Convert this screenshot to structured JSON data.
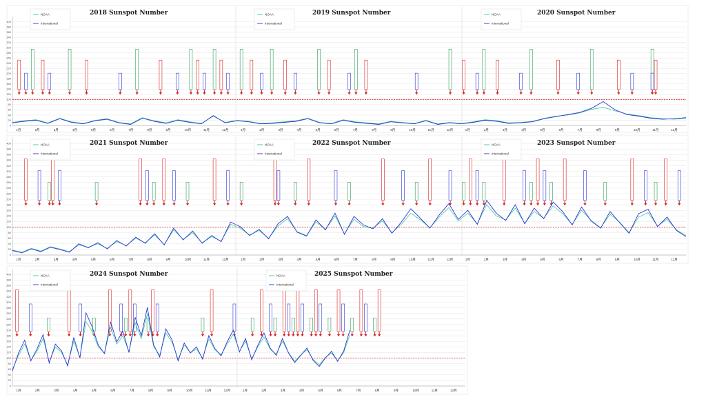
{
  "colors": {
    "noaa": "#3ec99a",
    "international": "#2a35d6",
    "threshold": "#e03030",
    "grid": "#d9d9d9",
    "event_red": "#d81f1f",
    "event_blue": "#2a35d6",
    "event_green": "#2f9a57"
  },
  "legend": {
    "noaa": "NOAA",
    "international": "International"
  },
  "month_labels": [
    "1月",
    "2月",
    "3月",
    "4月",
    "5月",
    "6月",
    "7月",
    "8月",
    "9月",
    "10月",
    "11月",
    "12月"
  ],
  "chart_data": [
    {
      "type": "line",
      "title_left": "2018 Sunspot Number",
      "title_mid": "2019 Sunspot Number",
      "title_right": "2020 Sunspot Number",
      "years": [
        2018,
        2019,
        2020
      ],
      "ylim": [
        0,
        420
      ],
      "yticks": [
        0,
        20,
        40,
        60,
        80,
        100,
        120,
        140,
        160,
        180,
        200,
        220,
        240,
        260,
        280,
        300,
        320,
        340,
        360,
        380,
        400
      ],
      "threshold": 100,
      "months_labeled": "per year",
      "series": [
        {
          "name": "NOAA",
          "values": [
            12,
            18,
            22,
            10,
            28,
            14,
            8,
            20,
            26,
            12,
            6,
            30,
            18,
            10,
            22,
            14,
            8,
            36,
            12,
            20,
            16,
            8,
            10,
            14,
            18,
            28,
            12,
            8,
            22,
            14,
            10,
            6,
            16,
            12,
            8,
            20,
            6,
            12,
            8,
            14,
            22,
            18,
            10,
            12,
            16,
            28,
            36,
            40,
            48,
            62,
            70,
            56,
            44,
            38,
            30,
            26,
            24,
            28
          ]
        },
        {
          "name": "International",
          "values": [
            10,
            16,
            20,
            8,
            26,
            12,
            6,
            18,
            24,
            10,
            4,
            28,
            16,
            8,
            20,
            12,
            6,
            38,
            10,
            18,
            14,
            6,
            8,
            12,
            16,
            26,
            10,
            6,
            20,
            12,
            8,
            4,
            14,
            10,
            6,
            18,
            4,
            10,
            6,
            12,
            20,
            16,
            8,
            10,
            14,
            26,
            34,
            42,
            50,
            66,
            92,
            60,
            42,
            36,
            28,
            24,
            26,
            30
          ]
        }
      ]
    },
    {
      "type": "line",
      "title_left": "2021 Sunspot Number",
      "title_mid": "2022 Sunspot Number",
      "title_right": "2023 Sunspot Number",
      "years": [
        2021,
        2022,
        2023
      ],
      "ylim": [
        0,
        420
      ],
      "yticks": [
        0,
        20,
        40,
        60,
        80,
        100,
        120,
        140,
        160,
        180,
        200,
        220,
        240,
        260,
        280,
        300,
        320,
        340,
        360,
        380,
        400
      ],
      "threshold": 100,
      "series": [
        {
          "name": "NOAA",
          "values": [
            18,
            10,
            24,
            14,
            30,
            22,
            12,
            36,
            28,
            40,
            24,
            48,
            34,
            60,
            44,
            72,
            38,
            90,
            56,
            80,
            44,
            66,
            50,
            110,
            96,
            72,
            88,
            60,
            104,
            130,
            84,
            70,
            118,
            92,
            140,
            76,
            128,
            102,
            96,
            122,
            80,
            110,
            150,
            126,
            98,
            136,
            170,
            122,
            150,
            112,
            180,
            140,
            126,
            168,
            114,
            156,
            132,
            176,
            148,
            110,
            160,
            124,
            98,
            146,
            118,
            80,
            136,
            152,
            104,
            128,
            90,
            70
          ]
        },
        {
          "name": "International",
          "values": [
            16,
            8,
            22,
            12,
            28,
            20,
            10,
            40,
            26,
            44,
            22,
            52,
            32,
            64,
            42,
            76,
            36,
            96,
            54,
            86,
            42,
            70,
            48,
            118,
            102,
            70,
            92,
            58,
            112,
            138,
            82,
            68,
            126,
            90,
            150,
            74,
            138,
            108,
            94,
            130,
            78,
            118,
            166,
            132,
            96,
            144,
            184,
            128,
            160,
            110,
            196,
            150,
            124,
            180,
            112,
            168,
            130,
            190,
            156,
            108,
            172,
            122,
            96,
            156,
            116,
            78,
            148,
            164,
            102,
            136,
            88,
            66
          ]
        }
      ]
    },
    {
      "type": "line",
      "title_left": "2024 Sunspot Number",
      "title_mid": "2025 Sunspot Number",
      "years": [
        2024,
        2025
      ],
      "ylim": [
        0,
        420
      ],
      "yticks": [
        0,
        20,
        40,
        60,
        80,
        100,
        120,
        140,
        160,
        180,
        200,
        220,
        240,
        260,
        280,
        300,
        320,
        340,
        360,
        380,
        400
      ],
      "threshold": 100,
      "series": [
        {
          "name": "NOAA",
          "values": [
            60,
            110,
            150,
            92,
            124,
            170,
            86,
            140,
            120,
            76,
            160,
            104,
            230,
            196,
            140,
            118,
            210,
            150,
            180,
            122,
            226,
            170,
            260,
            142,
            110,
            190,
            158,
            96,
            146,
            120,
            132,
            100,
            168,
            130,
            112,
            150,
            186,
            124,
            160,
            98,
            140,
            176,
            132,
            114,
            160,
            120,
            88,
            112,
            130,
            96,
            76,
            102,
            118,
            90,
            120,
            184
          ]
        },
        {
          "name": "International",
          "values": [
            54,
            118,
            164,
            90,
            132,
            184,
            82,
            150,
            126,
            72,
            174,
            100,
            262,
            212,
            146,
            116,
            230,
            158,
            196,
            120,
            246,
            180,
            282,
            148,
            104,
            204,
            166,
            90,
            154,
            118,
            140,
            96,
            180,
            134,
            108,
            158,
            200,
            122,
            170,
            94,
            146,
            190,
            136,
            110,
            170,
            118,
            84,
            110,
            136,
            92,
            70,
            100,
            124,
            88,
            126,
            200
          ]
        }
      ]
    }
  ]
}
